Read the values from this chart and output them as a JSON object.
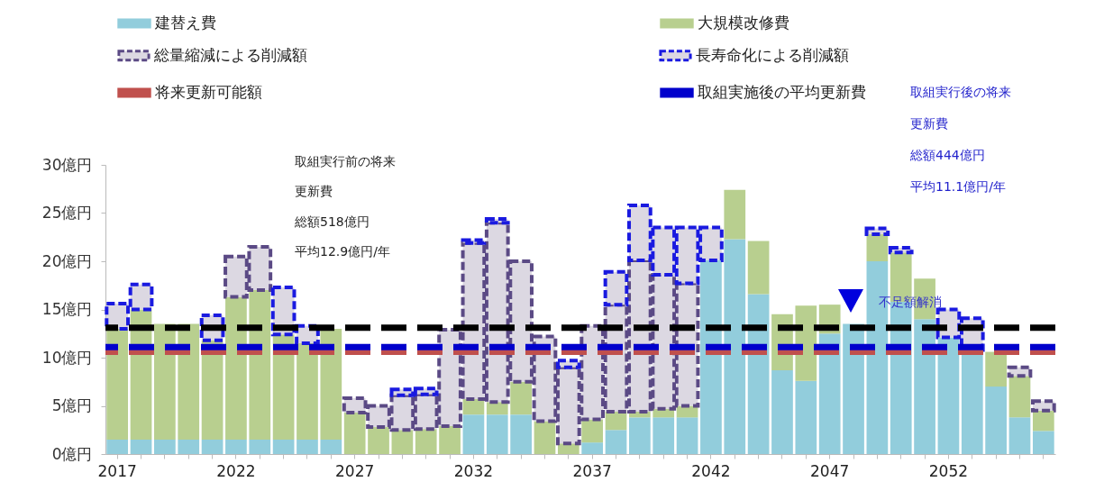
{
  "chart_data": {
    "type": "bar",
    "stacked": true,
    "legend": "top",
    "categories": [
      "2017",
      null,
      null,
      null,
      null,
      "2022",
      null,
      null,
      null,
      null,
      "2027",
      null,
      null,
      null,
      null,
      "2032",
      null,
      null,
      null,
      null,
      "2037",
      null,
      null,
      null,
      null,
      "2042",
      null,
      null,
      null,
      null,
      "2047",
      null,
      null,
      null,
      null,
      "2052",
      null,
      null,
      null,
      null
    ],
    "series": [
      {
        "name": "建替え費",
        "color": "#92cddc",
        "values": [
          1.5,
          1.5,
          1.5,
          1.5,
          1.5,
          1.5,
          1.5,
          1.5,
          1.5,
          1.5,
          0,
          0,
          0,
          0,
          0,
          4.1,
          4.1,
          4.1,
          0,
          0,
          1.2,
          2.5,
          3.8,
          3.8,
          3.8,
          20.1,
          22.3,
          16.6,
          8.7,
          7.6,
          12.5,
          13.5,
          20,
          15.8,
          14,
          12.1,
          10.6,
          7.0,
          3.8,
          2.4
        ]
      },
      {
        "name": "大規模改修費",
        "color": "#b8cf8f",
        "values": [
          11.5,
          13.5,
          12,
          12,
          10.3,
          14.8,
          15.5,
          10.9,
          10,
          11.5,
          4.3,
          2.8,
          2.5,
          2.6,
          2.9,
          1.6,
          1.3,
          3.4,
          3.4,
          1.1,
          2.4,
          1.9,
          0.6,
          0.9,
          1.2,
          0,
          5.1,
          5.5,
          5.8,
          7.8,
          3.0,
          0,
          2.8,
          5.1,
          4.2,
          0,
          0,
          3.6,
          4.3,
          2.1
        ]
      },
      {
        "name": "総量縮減による削減額",
        "color": "#5b4a85",
        "line_style": "dashed",
        "values": [
          null,
          null,
          null,
          null,
          null,
          4.2,
          4.5,
          null,
          null,
          null,
          1.5,
          2.2,
          3.6,
          3.6,
          10,
          16.2,
          18.6,
          12.5,
          8.8,
          7.9,
          9.7,
          11.1,
          15.7,
          13.9,
          12.7,
          null,
          null,
          null,
          null,
          null,
          null,
          null,
          null,
          null,
          null,
          null,
          null,
          null,
          0.9,
          1.0
        ]
      },
      {
        "name": "長寿命化による削減額",
        "color": "#1a1ae0",
        "line_style": "dashed",
        "values": [
          2.6,
          2.6,
          null,
          null,
          2.6,
          null,
          null,
          4.9,
          1.8,
          null,
          null,
          null,
          0.6,
          0.6,
          null,
          0.3,
          0.4,
          null,
          null,
          0.7,
          null,
          3.4,
          5.7,
          4.9,
          5.8,
          3.4,
          null,
          null,
          null,
          null,
          null,
          null,
          0.6,
          0.5,
          null,
          2.9,
          3.5,
          null,
          null,
          null
        ]
      }
    ],
    "ylim": [
      0,
      30
    ],
    "yticks": [
      {
        "value": 0,
        "label": "0億円"
      },
      {
        "value": 5,
        "label": "5億円"
      },
      {
        "value": 10,
        "label": "10億円"
      },
      {
        "value": 15,
        "label": "15億円"
      },
      {
        "value": 20,
        "label": "20億円"
      },
      {
        "value": 25,
        "label": "25億円"
      },
      {
        "value": 30,
        "label": "30億円"
      }
    ],
    "ref_lines": [
      {
        "axis": "y",
        "value": 13.1,
        "color": "#000000",
        "line_style": "dashed"
      },
      {
        "axis": "y",
        "value": 10.6,
        "label": "将来更新可能額",
        "color": "#c0504d",
        "line_style": "dashed"
      },
      {
        "axis": "y",
        "value": 11.1,
        "label": "取組実施後の平均更新費",
        "color": "#0000cc",
        "line_style": "dashed"
      }
    ],
    "annotations": [
      "取組実行前の将来",
      "更新費",
      "総額518億円",
      "平均12.9億円/年",
      "取組実行後の将来",
      "更新費",
      "総額444億円",
      "平均11.1億円/年",
      "不足額解消"
    ]
  }
}
